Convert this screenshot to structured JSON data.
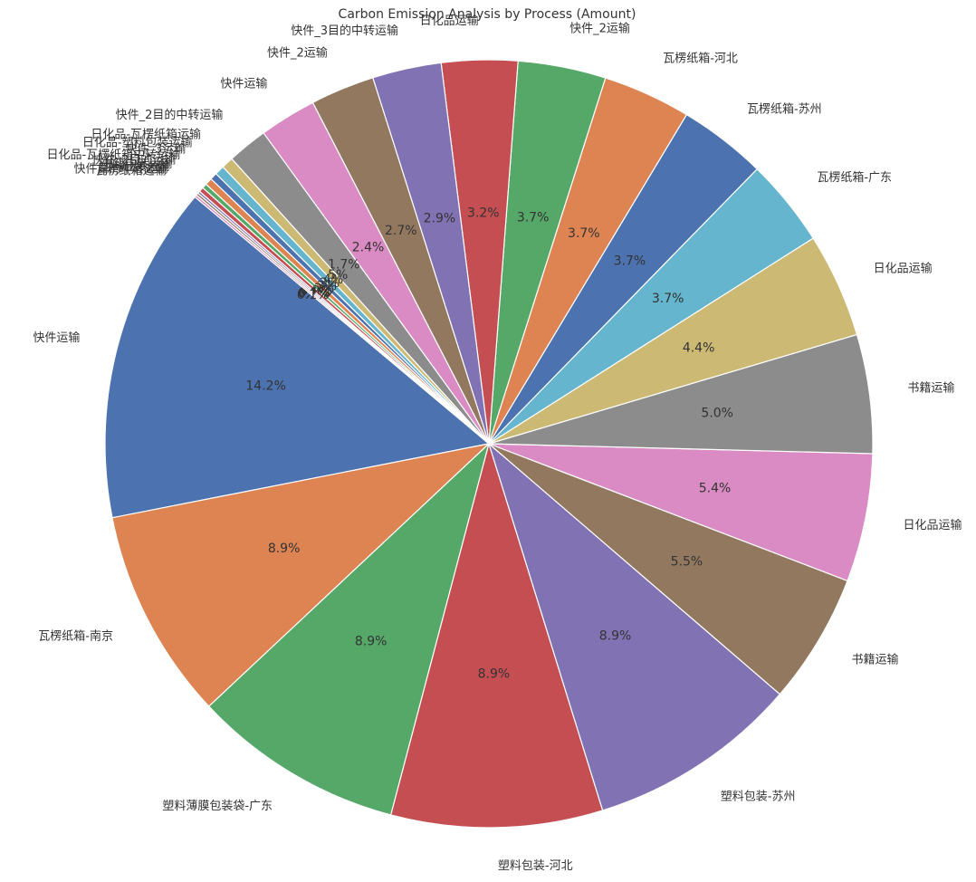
{
  "chart_data": {
    "type": "pie",
    "title": "Carbon Emission Analysis by Process (Amount)",
    "start_angle": 140,
    "categories": [
      "快件运输",
      "瓦楞纸箱-南京",
      "塑料薄膜包装袋-广东",
      "塑料包装-河北",
      "塑料包装-苏州",
      "书籍运输",
      "日化品运输",
      "书籍运输",
      "日化品运输",
      "瓦楞纸箱-广东",
      "瓦楞纸箱-苏州",
      "瓦楞纸箱-河北",
      "快件_2运输",
      "日化品运输",
      "快件_3目的中转运输",
      "快件_2运输",
      "快件运输",
      "快件_2目的中转运输",
      "日化品-瓦楞纸箱运输",
      "日化品-塑料包装运输",
      "快件_3运输",
      "日化品-瓦楞纸箱中转运输",
      "快件_2目的运输",
      "书籍中转运输",
      "塑料包装运输",
      "快件目的中转运输",
      "瓦楞纸箱运输"
    ],
    "values": [
      14.2,
      8.9,
      8.9,
      8.9,
      8.9,
      5.5,
      5.4,
      5.0,
      4.4,
      3.7,
      3.7,
      3.7,
      3.7,
      3.2,
      2.9,
      2.7,
      2.4,
      1.7,
      0.5,
      0.4,
      0.3,
      0.3,
      0.2,
      0.2,
      0.1,
      0.1,
      0.1
    ],
    "value_labels": [
      "14.2%",
      "8.9%",
      "8.9%",
      "8.9%",
      "8.9%",
      "5.5%",
      "5.4%",
      "5.0%",
      "4.4%",
      "3.7%",
      "3.7%",
      "3.7%",
      "3.7%",
      "3.2%",
      "2.9%",
      "2.7%",
      "2.4%",
      "1.7%",
      "0.5%",
      "0.4%",
      "0.3%",
      "0.3%",
      "0.2%",
      "0.2%",
      "0.1%",
      "0.1%",
      "0.1%"
    ],
    "colors": [
      "#4c72b0",
      "#dd8452",
      "#55a868",
      "#c44e52",
      "#8172b3",
      "#937860",
      "#da8bc3",
      "#8c8c8c",
      "#ccb974",
      "#64b5cd"
    ]
  }
}
